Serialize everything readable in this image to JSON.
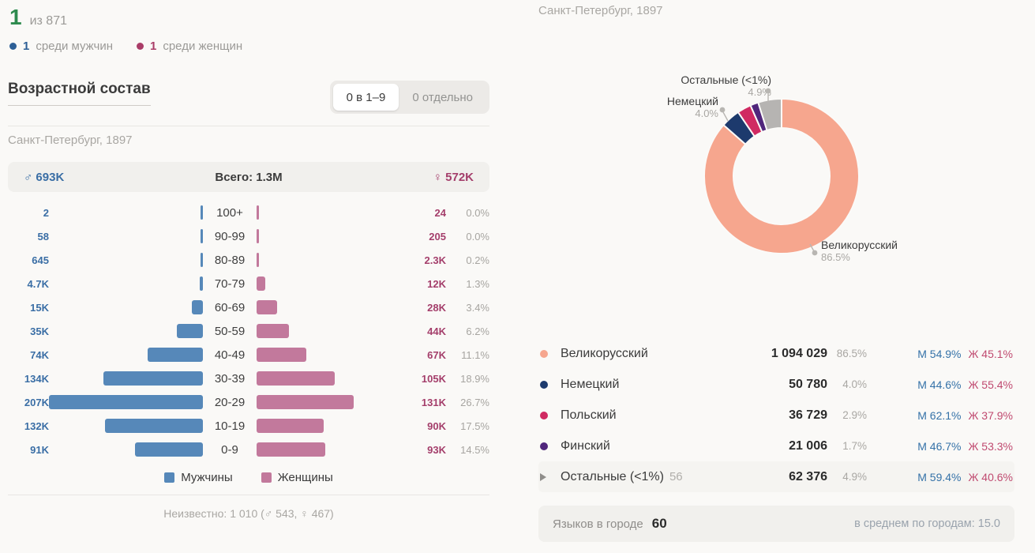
{
  "summary": {
    "rank": "1",
    "rank_of": "из 871",
    "male_rank": "1",
    "male_label": "среди мужчин",
    "female_rank": "1",
    "female_label": "среди женщин"
  },
  "age_section": {
    "title": "Возрастной состав",
    "toggle_grouped": "0 в 1–9",
    "toggle_separate": "0 отдельно",
    "subtitle": "Санкт-Петербург, 1897",
    "male_symbol": "♂",
    "female_symbol": "♀",
    "total_male": "693K",
    "total_all": "Всего: 1.3M",
    "total_female": "572K",
    "legend_male": "Мужчины",
    "legend_female": "Женщины",
    "footnote": "Неизвестно: 1 010 (♂ 543, ♀ 467)"
  },
  "languages_section": {
    "subtitle": "Санкт-Петербург, 1897",
    "rows": [
      {
        "name": "Великорусский",
        "extra": "",
        "count": "1 094 029",
        "percent": "86.5%",
        "male": "М 54.9%",
        "female": "Ж 45.1%",
        "color": "#f6a68e",
        "expandable": false,
        "highlight": false
      },
      {
        "name": "Немецкий",
        "extra": "",
        "count": "50 780",
        "percent": "4.0%",
        "male": "М 44.6%",
        "female": "Ж 55.4%",
        "color": "#1d3a6d",
        "expandable": false,
        "highlight": false
      },
      {
        "name": "Польский",
        "extra": "",
        "count": "36 729",
        "percent": "2.9%",
        "male": "М 62.1%",
        "female": "Ж 37.9%",
        "color": "#d02a62",
        "expandable": false,
        "highlight": false
      },
      {
        "name": "Финский",
        "extra": "",
        "count": "21 006",
        "percent": "1.7%",
        "male": "М 46.7%",
        "female": "Ж 53.3%",
        "color": "#50267c",
        "expandable": false,
        "highlight": false
      },
      {
        "name": "Остальные (<1%)",
        "extra": "56",
        "count": "62 376",
        "percent": "4.9%",
        "male": "М 59.4%",
        "female": "Ж 40.6%",
        "color": "#b6b4b2",
        "expandable": true,
        "highlight": true
      }
    ],
    "footer_label": "Языков в городе",
    "footer_count": "60",
    "footer_avg": "в среднем по городам: 15.0"
  },
  "chart_data": [
    {
      "type": "bar",
      "variant": "population-pyramid",
      "title": "Возрастной состав",
      "subtitle": "Санкт-Петербург, 1897",
      "categories": [
        "100+",
        "90-99",
        "80-89",
        "70-79",
        "60-69",
        "50-59",
        "40-49",
        "30-39",
        "20-29",
        "10-19",
        "0-9"
      ],
      "series": [
        {
          "name": "Мужчины",
          "color": "#5688b9",
          "labels": [
            "2",
            "58",
            "645",
            "4.7K",
            "15K",
            "35K",
            "74K",
            "134K",
            "207K",
            "132K",
            "91K"
          ],
          "values_thousands": [
            0.002,
            0.058,
            0.645,
            4.7,
            15,
            35,
            74,
            134,
            207,
            132,
            91
          ],
          "total": "693K"
        },
        {
          "name": "Женщины",
          "color": "#c2799c",
          "labels": [
            "24",
            "205",
            "2.3K",
            "12K",
            "28K",
            "44K",
            "67K",
            "105K",
            "131K",
            "90K",
            "93K"
          ],
          "values_thousands": [
            0.024,
            0.205,
            2.3,
            12,
            28,
            44,
            67,
            105,
            131,
            90,
            93
          ],
          "total": "572K"
        }
      ],
      "row_percent_labels": [
        "0.0%",
        "0.0%",
        "0.2%",
        "1.3%",
        "3.4%",
        "6.2%",
        "11.1%",
        "18.9%",
        "26.7%",
        "17.5%",
        "14.5%"
      ],
      "grand_total": "Всего: 1.3M",
      "unknown_note": "Неизвестно: 1 010 (♂ 543, ♀ 467)"
    },
    {
      "type": "pie",
      "variant": "donut",
      "title": "Санкт-Петербург, 1897",
      "legend_position": "callouts",
      "slices": [
        {
          "label": "Великорусский",
          "value": 1094029,
          "percent": 86.5,
          "percent_label": "86.5%",
          "color": "#f6a68e"
        },
        {
          "label": "Немецкий",
          "value": 50780,
          "percent": 4.0,
          "percent_label": "4.0%",
          "color": "#1d3a6d"
        },
        {
          "label": "Польский",
          "value": 36729,
          "percent": 2.9,
          "percent_label": "2.9%",
          "color": "#d02a62"
        },
        {
          "label": "Финский",
          "value": 21006,
          "percent": 1.7,
          "percent_label": "1.7%",
          "color": "#50267c"
        },
        {
          "label": "Остальные (<1%)",
          "value": 62376,
          "percent": 4.9,
          "percent_label": "4.9%",
          "color": "#b6b4b2"
        }
      ]
    }
  ]
}
